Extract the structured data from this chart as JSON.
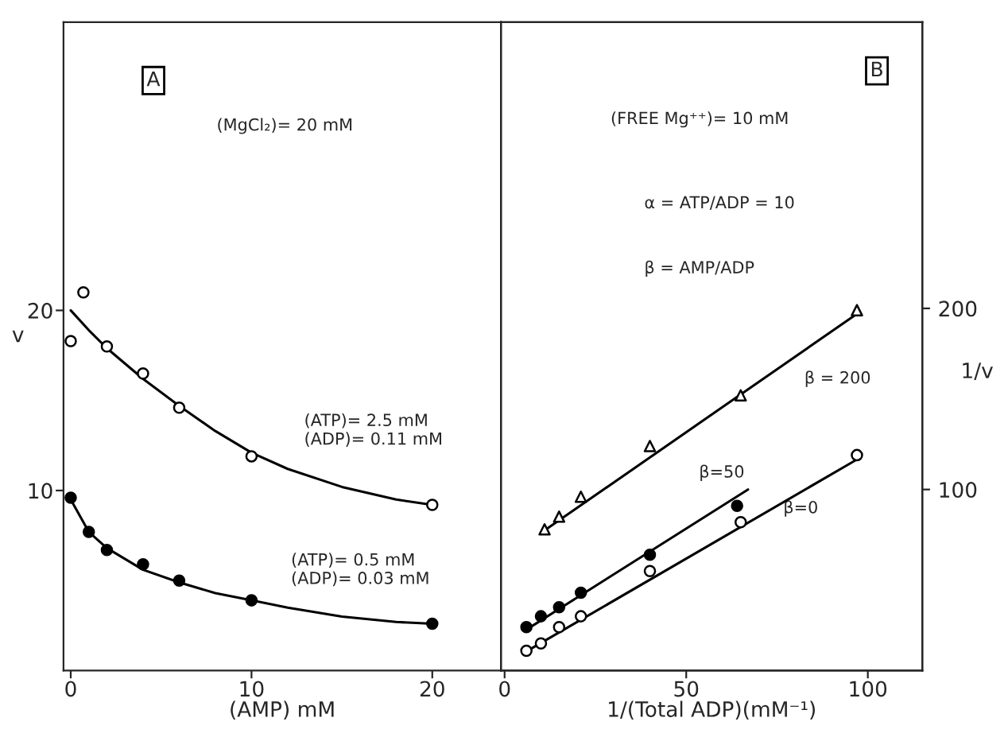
{
  "chart_data": [
    {
      "type": "scatter",
      "xlabel": "(AMP) mM",
      "ylabel": "v",
      "xlim": [
        -0.4,
        23.8
      ],
      "ylim": [
        0,
        36
      ],
      "xticks": [
        0,
        10,
        20
      ],
      "yticks": [
        10,
        20
      ],
      "grid": false,
      "legend": false,
      "annotations": [
        "A",
        "(MgCl₂)= 20 mM",
        "(ATP)= 2.5 mM\n(ADP)= 0.11 mM",
        "(ATP)= 0.5 mM\n(ADP)= 0.03 mM"
      ],
      "series": [
        {
          "marker": "circle",
          "color": "#ffffff",
          "x": [
            0,
            0.7,
            2,
            4,
            6,
            10,
            20
          ],
          "values": [
            18.3,
            21.0,
            18.0,
            16.5,
            14.6,
            11.9,
            9.2
          ]
        },
        {
          "marker": "circle",
          "color": "#000000",
          "x": [
            0,
            1,
            2,
            4,
            6,
            10,
            20
          ],
          "values": [
            9.6,
            7.7,
            6.7,
            5.9,
            5.0,
            3.9,
            2.6
          ]
        },
        {
          "type": "line",
          "marker": "none",
          "color": "#000000",
          "x": [
            0,
            1,
            2,
            4,
            6,
            8,
            10,
            12,
            15,
            18,
            20
          ],
          "values": [
            20,
            18.9,
            17.9,
            16.2,
            14.7,
            13.3,
            12.1,
            11.2,
            10.2,
            9.5,
            9.2
          ]
        },
        {
          "type": "line",
          "marker": "none",
          "color": "#000000",
          "x": [
            0,
            1,
            2,
            4,
            6,
            8,
            10,
            12,
            15,
            18,
            20
          ],
          "values": [
            9.5,
            7.7,
            6.8,
            5.6,
            4.9,
            4.3,
            3.9,
            3.5,
            3.0,
            2.7,
            2.6
          ]
        }
      ]
    },
    {
      "type": "scatter",
      "xlabel": "1/(Total ADP)(mM⁻¹)",
      "y2label": "1/v",
      "xlim": [
        -1,
        115
      ],
      "y2lim": [
        0,
        358
      ],
      "xticks": [
        0,
        50,
        100
      ],
      "y2ticks": [
        100,
        200
      ],
      "grid": false,
      "legend": false,
      "annotations": [
        "B",
        "(FREE Mg⁺⁺)= 10 mM",
        "α = ATP/ADP = 10",
        "β = AMP/ADP",
        "β = 200",
        "β=50",
        "β=0"
      ],
      "series": [
        {
          "axis": "y2",
          "marker": "triangle",
          "color": "#ffffff",
          "x": [
            11,
            15,
            21,
            40,
            65,
            97
          ],
          "values": [
            78,
            85,
            96,
            124,
            152,
            199
          ]
        },
        {
          "axis": "y2",
          "marker": "circle",
          "color": "#000000",
          "x": [
            6,
            10,
            15,
            21,
            40,
            64
          ],
          "values": [
            24,
            30,
            35,
            43,
            64,
            91
          ]
        },
        {
          "axis": "y2",
          "marker": "circle",
          "color": "#ffffff",
          "x": [
            6,
            10,
            15,
            21,
            40,
            65,
            97
          ],
          "values": [
            11,
            15,
            24,
            30,
            55,
            82,
            119
          ]
        },
        {
          "type": "line",
          "axis": "y2",
          "marker": "none",
          "color": "#000000",
          "x": [
            10,
            97
          ],
          "values": [
            76,
            197
          ]
        },
        {
          "type": "line",
          "axis": "y2",
          "marker": "none",
          "color": "#000000",
          "x": [
            5.5,
            67
          ],
          "values": [
            22,
            100
          ]
        },
        {
          "type": "line",
          "axis": "y2",
          "marker": "none",
          "color": "#000000",
          "x": [
            5.5,
            96.5
          ],
          "values": [
            10,
            116
          ]
        }
      ]
    }
  ]
}
